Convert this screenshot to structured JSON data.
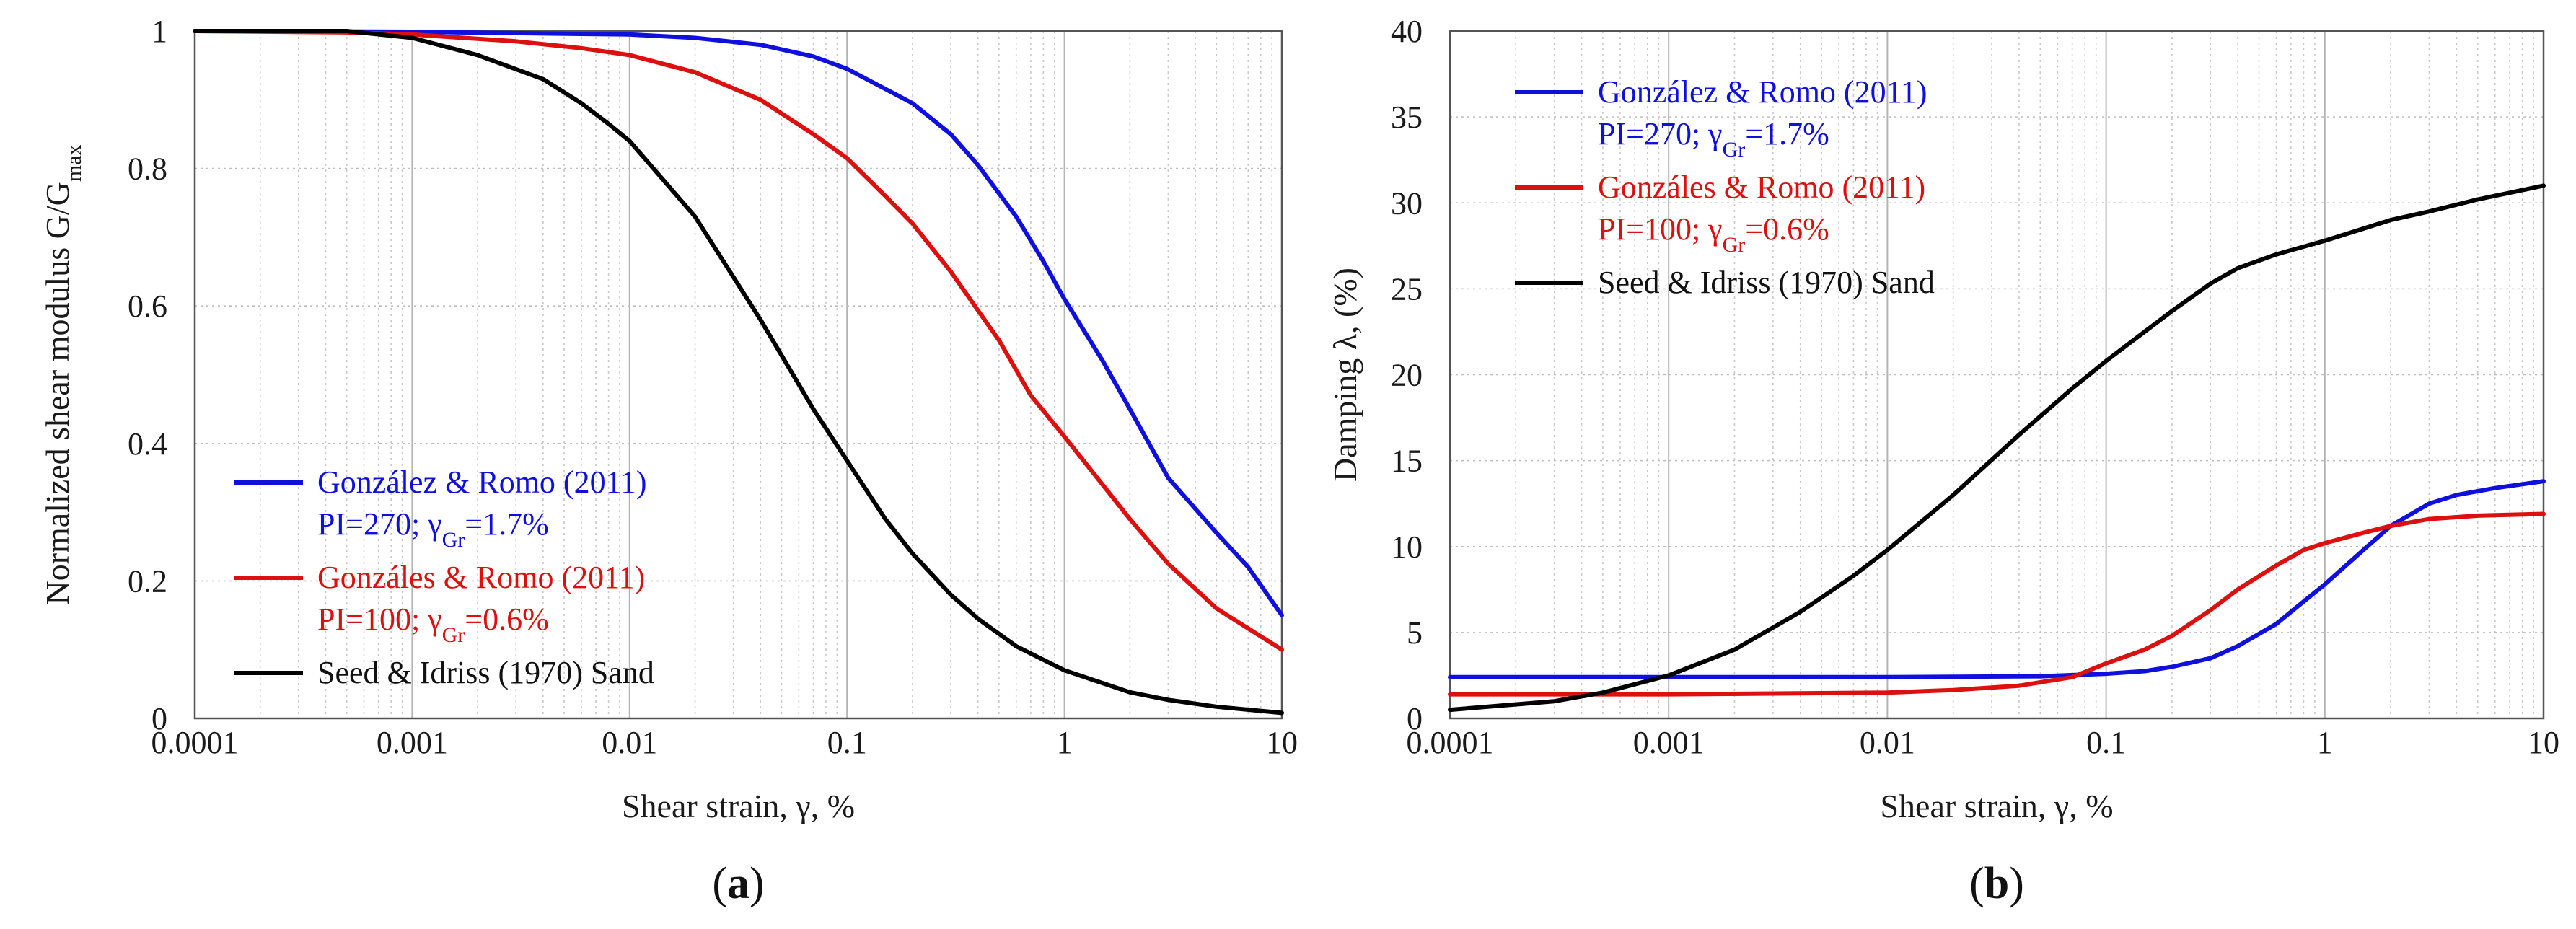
{
  "chart_data": [
    {
      "type": "line",
      "panel": "a",
      "caption": "a",
      "xscale": "log",
      "xlim": [
        0.0001,
        10
      ],
      "ylim": [
        0,
        1
      ],
      "x_ticks": [
        0.0001,
        0.001,
        0.01,
        0.1,
        1,
        10
      ],
      "x_tick_labels": [
        "0.0001",
        "0.001",
        "0.01",
        "0.1",
        "1",
        "10"
      ],
      "y_ticks": [
        0,
        0.2,
        0.4,
        0.6,
        0.8,
        1
      ],
      "y_tick_labels": [
        "0",
        "0.2",
        "0.4",
        "0.6",
        "0.8",
        "1"
      ],
      "xlabel": "Shear strain, γ, %",
      "ylabel": {
        "main": "Normalized shear modulus G/G",
        "sub": "max"
      },
      "grid": true,
      "legend_position": "bottom-left",
      "series": [
        {
          "name": "González & Romo (2011)",
          "legend_detail": {
            "prefix": "PI=270; γ",
            "sub": "Gr",
            "suffix": "=1.7%"
          },
          "color": "#1010dd",
          "x": [
            0.0001,
            0.001,
            0.003,
            0.01,
            0.02,
            0.04,
            0.07,
            0.1,
            0.2,
            0.3,
            0.4,
            0.6,
            0.8,
            1,
            1.5,
            2,
            3,
            5,
            7,
            10
          ],
          "y": [
            1.0,
            0.999,
            0.997,
            0.995,
            0.99,
            0.98,
            0.963,
            0.945,
            0.895,
            0.85,
            0.805,
            0.73,
            0.665,
            0.61,
            0.52,
            0.45,
            0.35,
            0.27,
            0.22,
            0.15
          ]
        },
        {
          "name": "Gonzáles & Romo (2011)",
          "legend_detail": {
            "prefix": "PI=100; γ",
            "sub": "Gr",
            "suffix": "=0.6%"
          },
          "color": "#dd1010",
          "x": [
            0.0001,
            0.0005,
            0.001,
            0.003,
            0.006,
            0.01,
            0.02,
            0.04,
            0.07,
            0.1,
            0.15,
            0.2,
            0.3,
            0.5,
            0.7,
            1,
            2,
            3,
            5,
            10
          ],
          "y": [
            1.0,
            0.998,
            0.995,
            0.985,
            0.975,
            0.965,
            0.94,
            0.9,
            0.85,
            0.815,
            0.76,
            0.72,
            0.65,
            0.55,
            0.47,
            0.41,
            0.29,
            0.225,
            0.16,
            0.1
          ]
        },
        {
          "name": "Seed & Idriss (1970) Sand",
          "legend_detail": null,
          "color": "#000000",
          "x": [
            0.0001,
            0.0005,
            0.001,
            0.002,
            0.004,
            0.006,
            0.008,
            0.01,
            0.02,
            0.04,
            0.07,
            0.1,
            0.15,
            0.2,
            0.3,
            0.4,
            0.6,
            1,
            2,
            3,
            5,
            10
          ],
          "y": [
            1.0,
            1.0,
            0.99,
            0.965,
            0.93,
            0.895,
            0.865,
            0.84,
            0.73,
            0.58,
            0.45,
            0.375,
            0.29,
            0.24,
            0.18,
            0.145,
            0.105,
            0.07,
            0.038,
            0.027,
            0.017,
            0.008
          ]
        }
      ]
    },
    {
      "type": "line",
      "panel": "b",
      "caption": "b",
      "xscale": "log",
      "xlim": [
        0.0001,
        10
      ],
      "ylim": [
        0,
        40
      ],
      "x_ticks": [
        0.0001,
        0.001,
        0.01,
        0.1,
        1,
        10
      ],
      "x_tick_labels": [
        "0.0001",
        "0.001",
        "0.01",
        "0.1",
        "1",
        "10"
      ],
      "y_ticks": [
        0,
        5,
        10,
        15,
        20,
        25,
        30,
        35,
        40
      ],
      "y_tick_labels": [
        "0",
        "5",
        "10",
        "15",
        "20",
        "25",
        "30",
        "35",
        "40"
      ],
      "xlabel": "Shear strain, γ, %",
      "ylabel": {
        "main": "Damping λ, (%)",
        "sub": ""
      },
      "grid": true,
      "legend_position": "top-left",
      "series": [
        {
          "name": "González & Romo (2011)",
          "legend_detail": {
            "prefix": "PI=270; γ",
            "sub": "Gr",
            "suffix": "=1.7%"
          },
          "color": "#1010dd",
          "x": [
            0.0001,
            0.001,
            0.01,
            0.05,
            0.1,
            0.15,
            0.2,
            0.3,
            0.4,
            0.6,
            0.8,
            1,
            1.5,
            2,
            3,
            4,
            6,
            10
          ],
          "y": [
            2.4,
            2.4,
            2.4,
            2.45,
            2.6,
            2.75,
            3.0,
            3.5,
            4.2,
            5.5,
            6.8,
            7.8,
            9.8,
            11.2,
            12.5,
            13.0,
            13.4,
            13.8
          ]
        },
        {
          "name": "Gonzáles & Romo (2011)",
          "legend_detail": {
            "prefix": "PI=100; γ",
            "sub": "Gr",
            "suffix": "=0.6%"
          },
          "color": "#dd1010",
          "x": [
            0.0001,
            0.001,
            0.01,
            0.02,
            0.04,
            0.07,
            0.1,
            0.15,
            0.2,
            0.3,
            0.4,
            0.6,
            0.8,
            1,
            1.5,
            2,
            3,
            5,
            10
          ],
          "y": [
            1.4,
            1.4,
            1.5,
            1.65,
            1.9,
            2.4,
            3.2,
            4.0,
            4.8,
            6.3,
            7.5,
            8.9,
            9.8,
            10.2,
            10.8,
            11.2,
            11.6,
            11.8,
            11.9
          ]
        },
        {
          "name": "Seed & Idriss (1970) Sand",
          "legend_detail": null,
          "color": "#000000",
          "x": [
            0.0001,
            0.0003,
            0.0005,
            0.001,
            0.002,
            0.004,
            0.007,
            0.01,
            0.02,
            0.04,
            0.07,
            0.1,
            0.15,
            0.2,
            0.3,
            0.4,
            0.6,
            1,
            2,
            3,
            5,
            10
          ],
          "y": [
            0.5,
            1.0,
            1.5,
            2.5,
            4.0,
            6.2,
            8.3,
            9.8,
            13.0,
            16.5,
            19.2,
            20.8,
            22.5,
            23.7,
            25.3,
            26.2,
            27.0,
            27.8,
            29.0,
            29.5,
            30.2,
            31.0
          ]
        }
      ]
    }
  ]
}
